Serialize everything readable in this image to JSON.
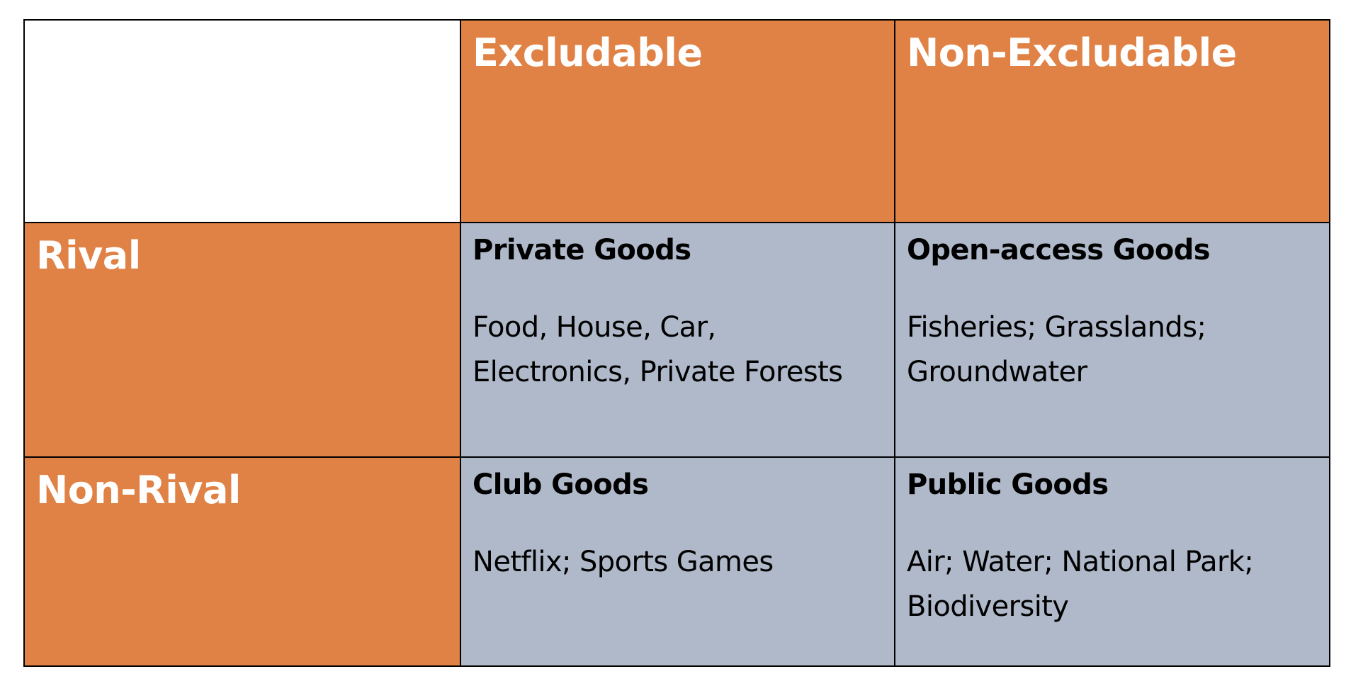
{
  "table": {
    "column_headers": [
      "",
      "Excludable",
      "Non-Excludable"
    ],
    "rows": [
      {
        "label": "Rival",
        "cells": [
          {
            "title": "Private Goods",
            "examples": [
              "Food, House, Car,",
              "Electronics, Private Forests"
            ]
          },
          {
            "title": "Open-access Goods",
            "examples": [
              "Fisheries; Grasslands;",
              "Groundwater"
            ]
          }
        ]
      },
      {
        "label": "Non-Rival",
        "cells": [
          {
            "title": "Club Goods",
            "examples": [
              "Netflix; Sports Games"
            ]
          },
          {
            "title": "Public Goods",
            "examples": [
              "Air; Water; National Park;",
              "Biodiversity"
            ]
          }
        ]
      }
    ]
  },
  "colors": {
    "header_orange": "#e08245",
    "body_gray": "#afb9c9",
    "border": "#000000",
    "header_text": "#ffffff"
  }
}
